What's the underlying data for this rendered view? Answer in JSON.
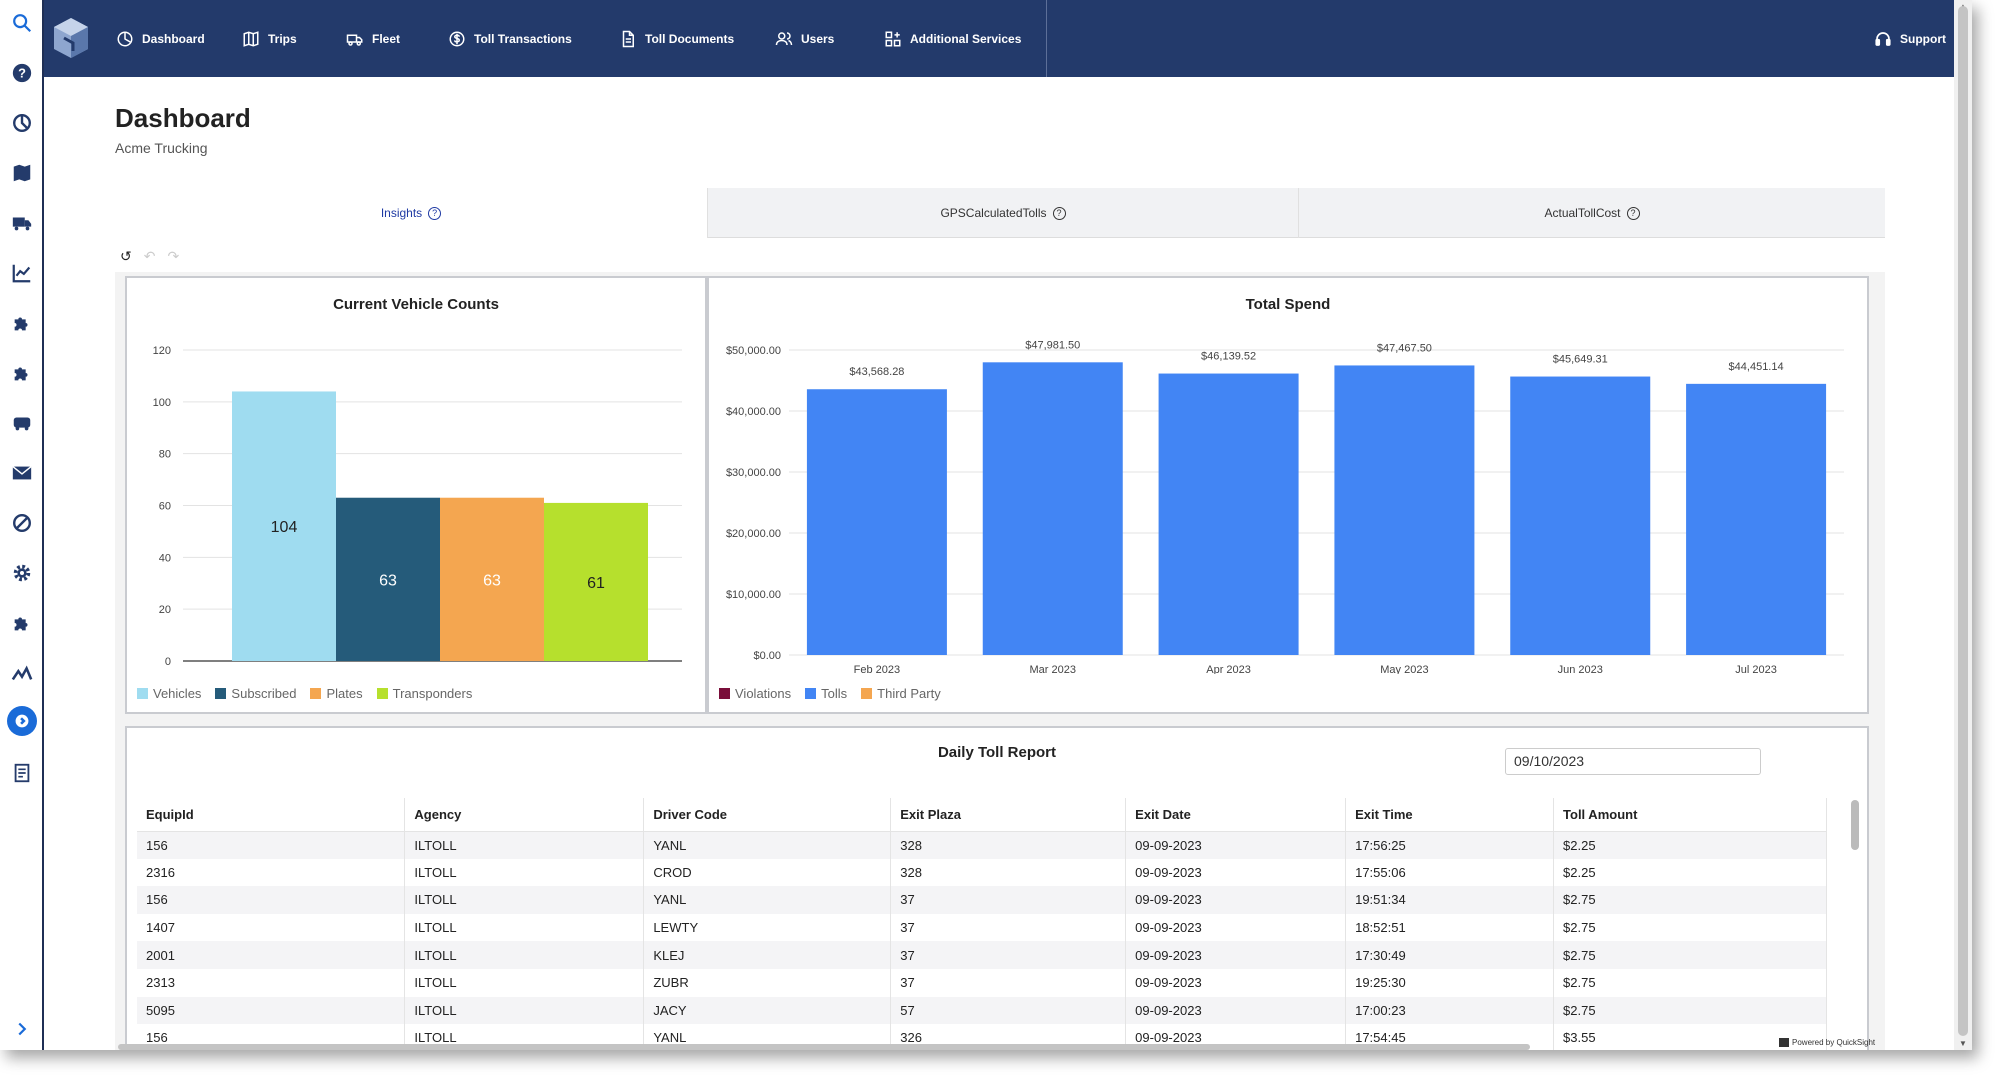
{
  "nav": {
    "items": [
      {
        "label": "Dashboard",
        "icon": "dashboard-icon"
      },
      {
        "label": "Trips",
        "icon": "map-icon"
      },
      {
        "label": "Fleet",
        "icon": "truck-icon"
      },
      {
        "label": "Toll Transactions",
        "icon": "dollar-icon"
      },
      {
        "label": "Toll Documents",
        "icon": "document-icon"
      },
      {
        "label": "Users",
        "icon": "users-icon"
      },
      {
        "label": "Additional Services",
        "icon": "grid-plus-icon"
      }
    ],
    "support_label": "Support"
  },
  "page": {
    "title": "Dashboard",
    "subtitle": "Acme Trucking"
  },
  "tabs": [
    {
      "label": "Insights",
      "active": true
    },
    {
      "label": "GPSCalculatedTolls",
      "active": false
    },
    {
      "label": "ActualTollCost",
      "active": false
    }
  ],
  "undo_bar": {
    "undo": "↺",
    "back": "↶",
    "forward": "↷"
  },
  "chart_data": [
    {
      "type": "bar",
      "title": "Current Vehicle Counts",
      "categories": [
        "Vehicles",
        "Subscribed",
        "Plates",
        "Transponders"
      ],
      "values": [
        104,
        63,
        63,
        61
      ],
      "colors": [
        "#9fdcf0",
        "#255b7a",
        "#f4a650",
        "#b6e02d"
      ],
      "label_colors": [
        "#222222",
        "#ffffff",
        "#ffffff",
        "#222222"
      ],
      "yticks": [
        0,
        20,
        40,
        60,
        80,
        100,
        120
      ],
      "ylim": [
        0,
        120
      ],
      "legend": [
        {
          "name": "Vehicles",
          "color": "#9fdcf0"
        },
        {
          "name": "Subscribed",
          "color": "#255b7a"
        },
        {
          "name": "Plates",
          "color": "#f4a650"
        },
        {
          "name": "Transponders",
          "color": "#b6e02d"
        }
      ],
      "grid": true
    },
    {
      "type": "bar",
      "title": "Total Spend",
      "categories": [
        "Feb 2023",
        "Mar 2023",
        "Apr 2023",
        "May 2023",
        "Jun 2023",
        "Jul 2023"
      ],
      "values": [
        43568.28,
        47981.5,
        46139.52,
        47467.5,
        45649.31,
        44451.14
      ],
      "value_labels": [
        "$43,568.28",
        "$47,981.50",
        "$46,139.52",
        "$47,467.50",
        "$45,649.31",
        "$44,451.14"
      ],
      "bar_color": "#4285f4",
      "yticks": [
        0,
        10000,
        20000,
        30000,
        40000,
        50000
      ],
      "ytick_labels": [
        "$0.00",
        "$10,000.00",
        "$20,000.00",
        "$30,000.00",
        "$40,000.00",
        "$50,000.00"
      ],
      "ylim": [
        0,
        50000
      ],
      "legend": [
        {
          "name": "Violations",
          "color": "#7a0e3a"
        },
        {
          "name": "Tolls",
          "color": "#4285f4"
        },
        {
          "name": "Third Party",
          "color": "#f4a650"
        }
      ],
      "grid": true
    }
  ],
  "report": {
    "title": "Daily Toll Report",
    "date_value": "09/10/2023",
    "columns": [
      "EquipId",
      "Agency",
      "Driver Code",
      "Exit Plaza",
      "Exit Date",
      "Exit Time",
      "Toll Amount"
    ],
    "rows": [
      [
        "156",
        "ILTOLL",
        "YANL",
        "328",
        "09-09-2023",
        "17:56:25",
        "$2.25"
      ],
      [
        "2316",
        "ILTOLL",
        "CROD",
        "328",
        "09-09-2023",
        "17:55:06",
        "$2.25"
      ],
      [
        "156",
        "ILTOLL",
        "YANL",
        "37",
        "09-09-2023",
        "19:51:34",
        "$2.75"
      ],
      [
        "1407",
        "ILTOLL",
        "LEWTY",
        "37",
        "09-09-2023",
        "18:52:51",
        "$2.75"
      ],
      [
        "2001",
        "ILTOLL",
        "KLEJ",
        "37",
        "09-09-2023",
        "17:30:49",
        "$2.75"
      ],
      [
        "2313",
        "ILTOLL",
        "ZUBR",
        "37",
        "09-09-2023",
        "19:25:30",
        "$2.75"
      ],
      [
        "5095",
        "ILTOLL",
        "JACY",
        "57",
        "09-09-2023",
        "17:00:23",
        "$2.75"
      ],
      [
        "156",
        "ILTOLL",
        "YANL",
        "326",
        "09-09-2023",
        "17:54:45",
        "$3.55"
      ]
    ]
  },
  "footer": {
    "powered_by": "Powered by QuickSight"
  }
}
